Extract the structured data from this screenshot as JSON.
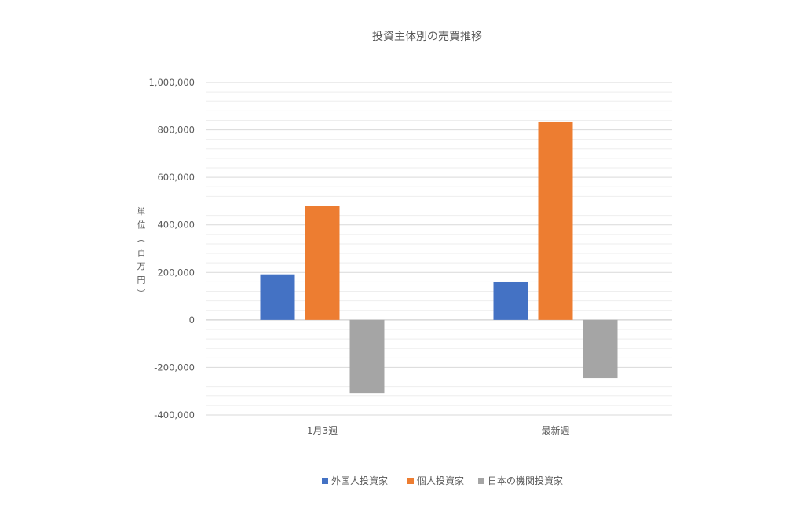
{
  "chart_data": {
    "type": "bar",
    "title": "投資主体別の売買推移",
    "ylabel": "単位（百万円）",
    "xlabel": "",
    "categories": [
      "1月3週",
      "最新週"
    ],
    "series": [
      {
        "name": "外国人投資家",
        "color": "#4472C4",
        "values": [
          192000,
          158000
        ]
      },
      {
        "name": "個人投資家",
        "color": "#ED7D31",
        "values": [
          480000,
          835000
        ]
      },
      {
        "name": "日本の機関投資家",
        "color": "#A5A5A5",
        "values": [
          -308000,
          -245000
        ]
      }
    ],
    "ylim": [
      -400000,
      1000000
    ],
    "yticks": [
      1000000,
      800000,
      600000,
      400000,
      200000,
      0,
      -200000,
      -400000
    ],
    "ytick_labels": [
      "1,000,000",
      "800,000",
      "600,000",
      "400,000",
      "200,000",
      "0",
      "-200,000",
      "-400,000"
    ],
    "grid": true,
    "legend_position": "bottom"
  }
}
